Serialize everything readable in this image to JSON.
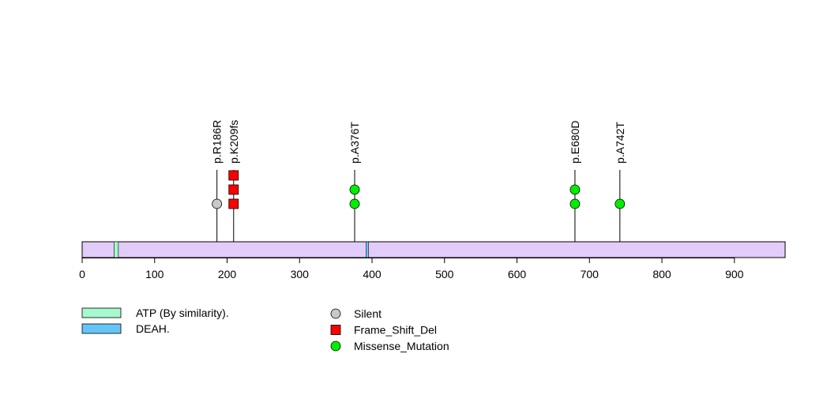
{
  "chart_data": {
    "type": "lollipop",
    "protein_length": 970,
    "xlim": [
      0,
      970
    ],
    "x_ticks": [
      0,
      100,
      200,
      300,
      400,
      500,
      600,
      700,
      800,
      900
    ],
    "x_tick_labels": [
      "0",
      "100",
      "200",
      "300",
      "400",
      "500",
      "600",
      "700",
      "800",
      "900"
    ],
    "protein_color": "#E2CCF8",
    "domains": [
      {
        "name": "ATP (By similarity).",
        "start": 44,
        "end": 50,
        "color": "#A6F8CE"
      },
      {
        "name": "DEAH.",
        "start": 392,
        "end": 395,
        "color": "#66C5F8"
      }
    ],
    "mutations": [
      {
        "label": "p.R186R",
        "position": 186,
        "count": 1,
        "type": "Silent"
      },
      {
        "label": "p.K209fs",
        "position": 209,
        "count": 3,
        "type": "Frame_Shift_Del"
      },
      {
        "label": "p.A376T",
        "position": 376,
        "count": 2,
        "type": "Missense_Mutation"
      },
      {
        "label": "p.E680D",
        "position": 680,
        "count": 2,
        "type": "Missense_Mutation"
      },
      {
        "label": "p.A742T",
        "position": 742,
        "count": 1,
        "type": "Missense_Mutation"
      }
    ],
    "mutation_types": [
      {
        "name": "Silent",
        "shape": "circle",
        "color": "#C8C8C8"
      },
      {
        "name": "Frame_Shift_Del",
        "shape": "square",
        "color": "#FF0000"
      },
      {
        "name": "Missense_Mutation",
        "shape": "circle",
        "color": "#00EE00"
      }
    ]
  }
}
